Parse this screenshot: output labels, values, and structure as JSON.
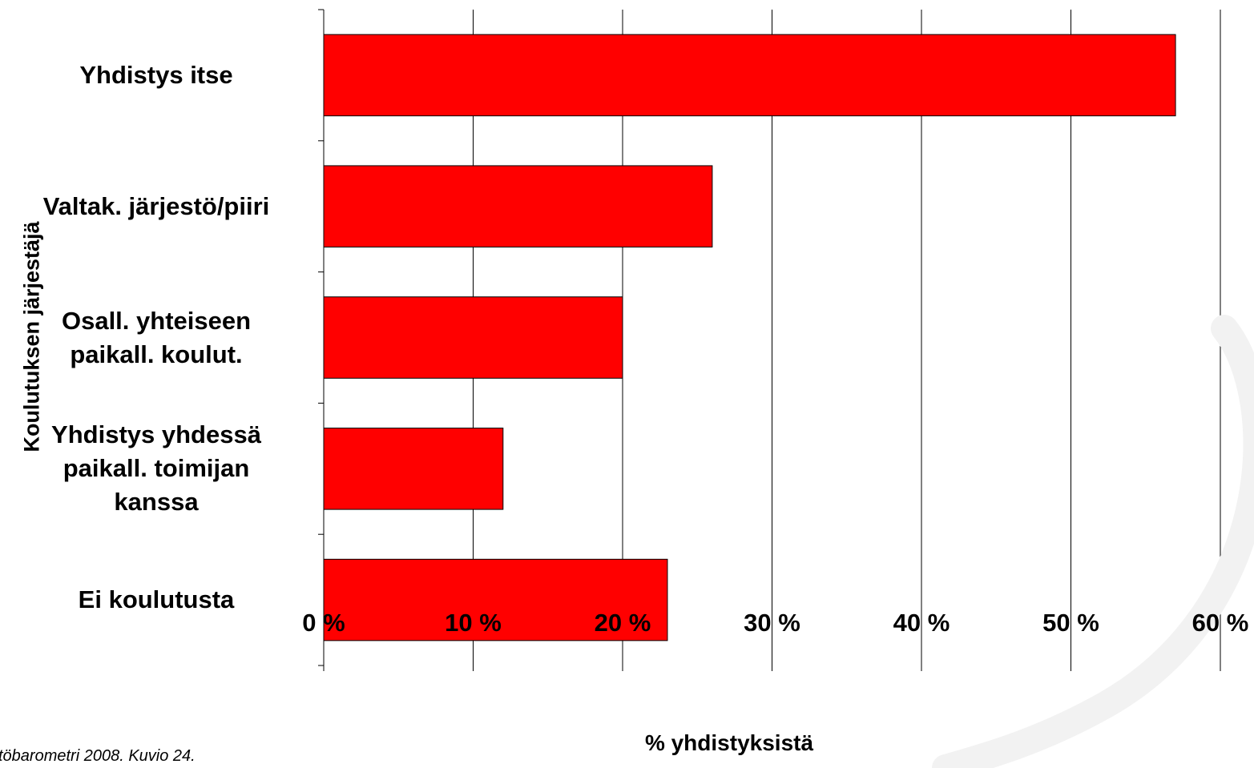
{
  "chart_data": {
    "type": "bar",
    "orientation": "horizontal",
    "categories": [
      "Yhdistys itse",
      "Valtak. järjestö/piiri",
      "Osall. yhteiseen\npaikall. koulut.",
      "Yhdistys yhdessä\npaikall. toimijan\nkanssa",
      "Ei koulutusta"
    ],
    "values": [
      57,
      26,
      20,
      12,
      23
    ],
    "xlabel": "% yhdistyksistä",
    "ylabel": "Koulutuksen järjestäjä",
    "xlim": [
      0,
      60
    ],
    "xticks": [
      "0 %",
      "10 %",
      "20 %",
      "30 %",
      "40 %",
      "50 %",
      "60 %"
    ],
    "grid": "vertical",
    "bar_color": "#ff0000",
    "source_note": "töbarometri 2008. Kuvio 24."
  }
}
